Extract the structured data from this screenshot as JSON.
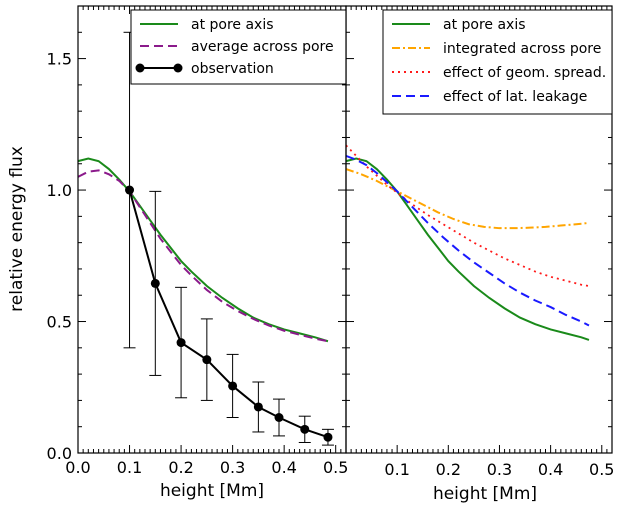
{
  "colors": {
    "green": "#1a8a1a",
    "purple": "#8b1a8b",
    "black": "#000000",
    "orange": "#ffa500",
    "red": "#ff1a1a",
    "blue": "#1a1aff"
  },
  "chart_data": [
    {
      "type": "line",
      "xlabel": "height [Mm]",
      "ylabel": "relative energy flux",
      "xlim": [
        0.0,
        0.52
      ],
      "ylim": [
        0.0,
        1.7
      ],
      "xticks": [
        "0.0",
        "0.1",
        "0.2",
        "0.3",
        "0.4",
        "0.5"
      ],
      "yticks": [
        "0.0",
        "0.5",
        "1.0",
        "1.5"
      ],
      "legend_position": "top-right",
      "series": [
        {
          "name": "at pore axis",
          "style": "solid",
          "color": "green",
          "x": [
            0.0,
            0.02,
            0.04,
            0.06,
            0.08,
            0.1,
            0.12,
            0.14,
            0.16,
            0.18,
            0.2,
            0.22,
            0.25,
            0.28,
            0.31,
            0.34,
            0.37,
            0.4,
            0.43,
            0.46,
            0.485
          ],
          "y": [
            1.11,
            1.12,
            1.11,
            1.08,
            1.04,
            0.995,
            0.94,
            0.885,
            0.83,
            0.78,
            0.73,
            0.69,
            0.635,
            0.59,
            0.55,
            0.515,
            0.49,
            0.47,
            0.455,
            0.44,
            0.425
          ]
        },
        {
          "name": "average across pore",
          "style": "dashed",
          "color": "purple",
          "x": [
            0.0,
            0.02,
            0.04,
            0.06,
            0.08,
            0.1,
            0.12,
            0.14,
            0.16,
            0.18,
            0.2,
            0.22,
            0.25,
            0.28,
            0.31,
            0.34,
            0.37,
            0.4,
            0.43,
            0.46,
            0.485
          ],
          "y": [
            1.05,
            1.07,
            1.075,
            1.06,
            1.035,
            0.995,
            0.935,
            0.875,
            0.815,
            0.765,
            0.715,
            0.675,
            0.62,
            0.575,
            0.54,
            0.51,
            0.485,
            0.465,
            0.45,
            0.435,
            0.425
          ]
        },
        {
          "name": "observation",
          "style": "solid-markers",
          "color": "black",
          "x": [
            0.1,
            0.15,
            0.2,
            0.25,
            0.3,
            0.35,
            0.39,
            0.44,
            0.485
          ],
          "y": [
            1.0,
            0.645,
            0.42,
            0.355,
            0.255,
            0.175,
            0.135,
            0.09,
            0.06
          ],
          "err": [
            0.6,
            0.35,
            0.21,
            0.155,
            0.12,
            0.095,
            0.07,
            0.05,
            0.03
          ]
        }
      ]
    },
    {
      "type": "line",
      "xlabel": "height [Mm]",
      "ylabel": "",
      "xlim": [
        0.0,
        0.52
      ],
      "ylim": [
        0.0,
        1.7
      ],
      "xticks": [
        "0.1",
        "0.2",
        "0.3",
        "0.4",
        "0.5"
      ],
      "yticks": [],
      "legend_position": "top-right",
      "series": [
        {
          "name": "at pore axis",
          "style": "solid",
          "color": "green",
          "x": [
            0.0,
            0.02,
            0.04,
            0.06,
            0.08,
            0.1,
            0.12,
            0.14,
            0.16,
            0.18,
            0.2,
            0.22,
            0.25,
            0.28,
            0.31,
            0.34,
            0.37,
            0.4,
            0.43,
            0.46,
            0.475
          ],
          "y": [
            1.11,
            1.12,
            1.11,
            1.08,
            1.04,
            0.995,
            0.94,
            0.885,
            0.83,
            0.78,
            0.73,
            0.69,
            0.635,
            0.59,
            0.55,
            0.515,
            0.49,
            0.47,
            0.455,
            0.44,
            0.43
          ]
        },
        {
          "name": "integrated across pore",
          "style": "dashdot",
          "color": "orange",
          "x": [
            0.0,
            0.03,
            0.06,
            0.09,
            0.12,
            0.15,
            0.18,
            0.21,
            0.24,
            0.27,
            0.3,
            0.33,
            0.36,
            0.39,
            0.42,
            0.45,
            0.475
          ],
          "y": [
            1.08,
            1.06,
            1.035,
            1.005,
            0.975,
            0.945,
            0.915,
            0.89,
            0.87,
            0.86,
            0.855,
            0.855,
            0.857,
            0.86,
            0.865,
            0.87,
            0.875
          ]
        },
        {
          "name": "effect of geom. spread.",
          "style": "dotted",
          "color": "red",
          "x": [
            0.0,
            0.02,
            0.04,
            0.06,
            0.08,
            0.1,
            0.13,
            0.16,
            0.19,
            0.22,
            0.25,
            0.28,
            0.31,
            0.34,
            0.37,
            0.4,
            0.43,
            0.46,
            0.475
          ],
          "y": [
            1.17,
            1.13,
            1.09,
            1.055,
            1.02,
            0.99,
            0.945,
            0.905,
            0.87,
            0.835,
            0.8,
            0.77,
            0.74,
            0.715,
            0.69,
            0.67,
            0.655,
            0.64,
            0.635
          ]
        },
        {
          "name": "effect of lat. leakage",
          "style": "dashed",
          "color": "blue",
          "x": [
            0.0,
            0.02,
            0.04,
            0.06,
            0.08,
            0.1,
            0.13,
            0.16,
            0.19,
            0.22,
            0.25,
            0.28,
            0.31,
            0.34,
            0.37,
            0.4,
            0.43,
            0.46,
            0.475
          ],
          "y": [
            1.13,
            1.115,
            1.095,
            1.065,
            1.03,
            0.995,
            0.935,
            0.875,
            0.82,
            0.77,
            0.725,
            0.685,
            0.645,
            0.61,
            0.58,
            0.555,
            0.525,
            0.5,
            0.485
          ]
        }
      ]
    }
  ]
}
